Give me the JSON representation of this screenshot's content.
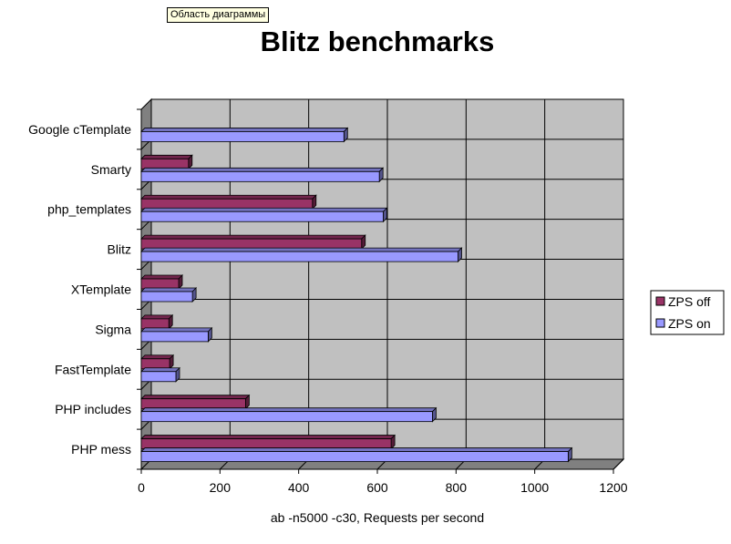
{
  "tooltip": {
    "text": "Область диаграммы"
  },
  "chart_data": {
    "type": "bar",
    "orientation": "horizontal",
    "style": "3d",
    "title": "Blitz benchmarks",
    "xlabel": "ab -n5000 -c30, Requests per second",
    "ylabel": "",
    "xlim": [
      0,
      1200
    ],
    "xticks": [
      0,
      200,
      400,
      600,
      800,
      1000,
      1200
    ],
    "grid": true,
    "legend_position": "right",
    "categories": [
      "Google cTemplate",
      "Smarty",
      "php_templates",
      "Blitz",
      "XTemplate",
      "Sigma",
      "FastTemplate",
      "PHP includes",
      "PHP mess"
    ],
    "series": [
      {
        "name": "ZPS off",
        "color": "#993366",
        "values": [
          null,
          120,
          435,
          560,
          95,
          70,
          72,
          265,
          635
        ]
      },
      {
        "name": "ZPS on",
        "color": "#9999ff",
        "values": [
          515,
          605,
          615,
          805,
          130,
          170,
          88,
          740,
          1085
        ]
      }
    ],
    "colors": {
      "plot_background": "#c0c0c0",
      "gridline": "#000000"
    }
  }
}
